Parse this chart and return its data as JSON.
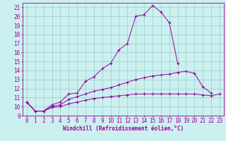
{
  "xlabel": "Windchill (Refroidissement éolien,°C)",
  "x": [
    0,
    1,
    2,
    3,
    4,
    5,
    6,
    7,
    8,
    9,
    10,
    11,
    12,
    13,
    14,
    15,
    16,
    17,
    18,
    19,
    20,
    21,
    22,
    23
  ],
  "line1": [
    10.5,
    9.5,
    9.5,
    10.2,
    10.5,
    11.4,
    11.5,
    12.8,
    13.3,
    14.2,
    14.8,
    16.3,
    17.0,
    20.0,
    20.2,
    21.2,
    20.5,
    19.3,
    14.8,
    null,
    null,
    null,
    null,
    null
  ],
  "line2": [
    10.5,
    9.5,
    9.5,
    10.0,
    10.2,
    10.8,
    11.1,
    11.4,
    11.7,
    11.9,
    12.1,
    12.4,
    12.7,
    13.0,
    13.2,
    13.4,
    13.5,
    13.6,
    13.8,
    13.9,
    13.7,
    12.2,
    11.5,
    null
  ],
  "line3": [
    10.5,
    9.5,
    9.5,
    9.9,
    10.0,
    10.3,
    10.5,
    10.7,
    10.9,
    11.0,
    11.1,
    11.2,
    11.3,
    11.4,
    11.4,
    11.4,
    11.4,
    11.4,
    11.4,
    11.4,
    11.4,
    11.3,
    11.2,
    11.4
  ],
  "line_color": "#990099",
  "bg_color": "#ccf0f0",
  "grid_color": "#99cccc",
  "ylim": [
    9,
    21.5
  ],
  "yticks": [
    9,
    10,
    11,
    12,
    13,
    14,
    15,
    16,
    17,
    18,
    19,
    20,
    21
  ],
  "xticks": [
    0,
    1,
    2,
    3,
    4,
    5,
    6,
    7,
    8,
    9,
    10,
    11,
    12,
    13,
    14,
    15,
    16,
    17,
    18,
    19,
    20,
    21,
    22,
    23
  ]
}
